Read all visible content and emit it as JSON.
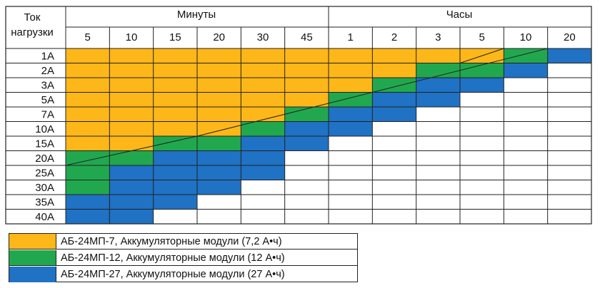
{
  "colors": {
    "amb24_7": "#fdb718",
    "amb24_12": "#21a84e",
    "amb24_27": "#1f72c4",
    "empty": "#ffffff",
    "border": "#222222"
  },
  "header": {
    "load_label_line1": "Ток",
    "load_label_line2": "нагрузки",
    "group_minutes": "Минуты",
    "group_hours": "Часы"
  },
  "table": {
    "time_columns": [
      "5",
      "10",
      "15",
      "20",
      "30",
      "45",
      "1",
      "2",
      "3",
      "5",
      "10",
      "20"
    ],
    "currents": [
      "1A",
      "2A",
      "3A",
      "5A",
      "7A",
      "10A",
      "15A",
      "20A",
      "25A",
      "30A",
      "35A",
      "40A"
    ],
    "rows": [
      [
        "Y",
        "Y",
        "Y",
        "Y",
        "Y",
        "Y",
        "Y",
        "Y",
        "Y",
        "Y",
        "G",
        "B"
      ],
      [
        "Y",
        "Y",
        "Y",
        "Y",
        "Y",
        "Y",
        "Y",
        "Y",
        "G",
        "G",
        "B",
        "W"
      ],
      [
        "Y",
        "Y",
        "Y",
        "Y",
        "Y",
        "Y",
        "Y",
        "G",
        "B",
        "B",
        "W",
        "W"
      ],
      [
        "Y",
        "Y",
        "Y",
        "Y",
        "Y",
        "Y",
        "G",
        "B",
        "B",
        "W",
        "W",
        "W"
      ],
      [
        "Y",
        "Y",
        "Y",
        "Y",
        "Y",
        "G",
        "B",
        "B",
        "W",
        "W",
        "W",
        "W"
      ],
      [
        "Y",
        "Y",
        "Y",
        "Y",
        "G",
        "B",
        "B",
        "W",
        "W",
        "W",
        "W",
        "W"
      ],
      [
        "Y",
        "Y",
        "G",
        "G",
        "B",
        "B",
        "W",
        "W",
        "W",
        "W",
        "W",
        "W"
      ],
      [
        "G",
        "G",
        "B",
        "B",
        "B",
        "W",
        "W",
        "W",
        "W",
        "W",
        "W",
        "W"
      ],
      [
        "G",
        "B",
        "B",
        "B",
        "B",
        "W",
        "W",
        "W",
        "W",
        "W",
        "W",
        "W"
      ],
      [
        "G",
        "B",
        "B",
        "B",
        "W",
        "W",
        "W",
        "W",
        "W",
        "W",
        "W",
        "W"
      ],
      [
        "B",
        "B",
        "B",
        "W",
        "W",
        "W",
        "W",
        "W",
        "W",
        "W",
        "W",
        "W"
      ],
      [
        "B",
        "B",
        "W",
        "W",
        "W",
        "W",
        "W",
        "W",
        "W",
        "W",
        "W",
        "W"
      ]
    ]
  },
  "legend": [
    {
      "color": "#fdb718",
      "label": "АБ-24МП-7, Аккумуляторные модули (7,2 А•ч)"
    },
    {
      "color": "#21a84e",
      "label": "АБ-24МП-12, Аккумуляторные модули (12 А•ч)"
    },
    {
      "color": "#1f72c4",
      "label": "АБ-24МП-27, Аккумуляторные модули (27 А•ч)"
    }
  ]
}
